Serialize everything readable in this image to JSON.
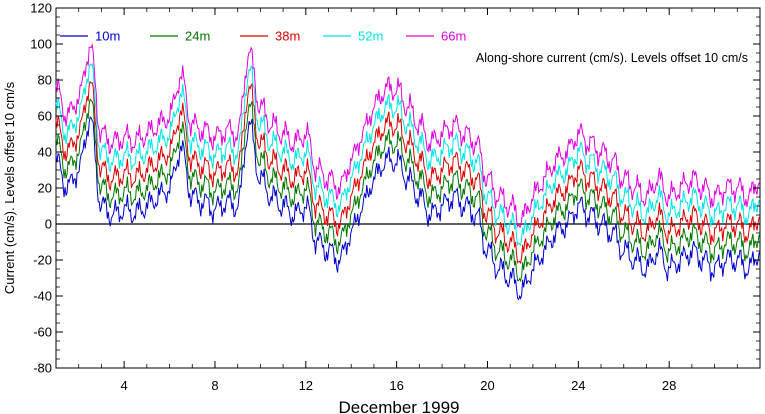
{
  "chart_data": {
    "type": "line",
    "title": "",
    "xlabel": "December 1999",
    "ylabel": "Current (cm/s). Levels offset 10 cm/s",
    "annotation": "Along-shore current (cm/s). Levels offset 10 cm/s",
    "xlim": [
      1,
      32
    ],
    "ylim": [
      -80,
      120
    ],
    "x_ticks": [
      4,
      8,
      12,
      16,
      20,
      24,
      28
    ],
    "x_tick_labels": [
      "4",
      "8",
      "12",
      "16",
      "20",
      "24",
      "28"
    ],
    "y_ticks": [
      -80,
      -60,
      -40,
      -20,
      0,
      20,
      40,
      60,
      80,
      100,
      120
    ],
    "y_tick_labels": [
      "-80",
      "-60",
      "-40",
      "-20",
      "0",
      "20",
      "40",
      "60",
      "80",
      "100",
      "120"
    ],
    "zero_line": true,
    "grid": false,
    "legend_position": "top-left",
    "series_offset": 10,
    "series": [
      {
        "name": "10m",
        "color": "#0000cc"
      },
      {
        "name": "24m",
        "color": "#007700"
      },
      {
        "name": "38m",
        "color": "#dd0000"
      },
      {
        "name": "52m",
        "color": "#00e5e5"
      },
      {
        "name": "66m",
        "color": "#e000e0"
      }
    ],
    "x": [
      1.0,
      1.5,
      2.0,
      2.5,
      3.0,
      3.5,
      4.0,
      4.5,
      5.0,
      5.5,
      6.0,
      6.5,
      7.0,
      7.5,
      8.0,
      8.5,
      9.0,
      9.5,
      10.0,
      10.5,
      11.0,
      11.5,
      12.0,
      12.5,
      13.0,
      13.5,
      14.0,
      14.5,
      15.0,
      15.5,
      16.0,
      16.5,
      17.0,
      17.5,
      18.0,
      18.5,
      19.0,
      19.5,
      20.0,
      20.5,
      21.0,
      21.5,
      22.0,
      22.5,
      23.0,
      23.5,
      24.0,
      24.5,
      25.0,
      25.5,
      26.0,
      26.5,
      27.0,
      27.5,
      28.0,
      28.5,
      29.0,
      29.5,
      30.0,
      30.5,
      31.0,
      31.5,
      32.0
    ],
    "base_values": [
      35,
      20,
      30,
      58,
      10,
      5,
      8,
      6,
      10,
      15,
      20,
      42,
      15,
      12,
      8,
      12,
      10,
      55,
      25,
      15,
      10,
      5,
      10,
      -10,
      -15,
      -20,
      -5,
      10,
      25,
      35,
      35,
      25,
      15,
      5,
      10,
      15,
      10,
      5,
      -15,
      -25,
      -30,
      -38,
      -25,
      -15,
      -5,
      0,
      10,
      5,
      0,
      -5,
      -15,
      -20,
      -25,
      -15,
      -25,
      -20,
      -15,
      -20,
      -25,
      -20,
      -20,
      -25,
      -15
    ]
  }
}
